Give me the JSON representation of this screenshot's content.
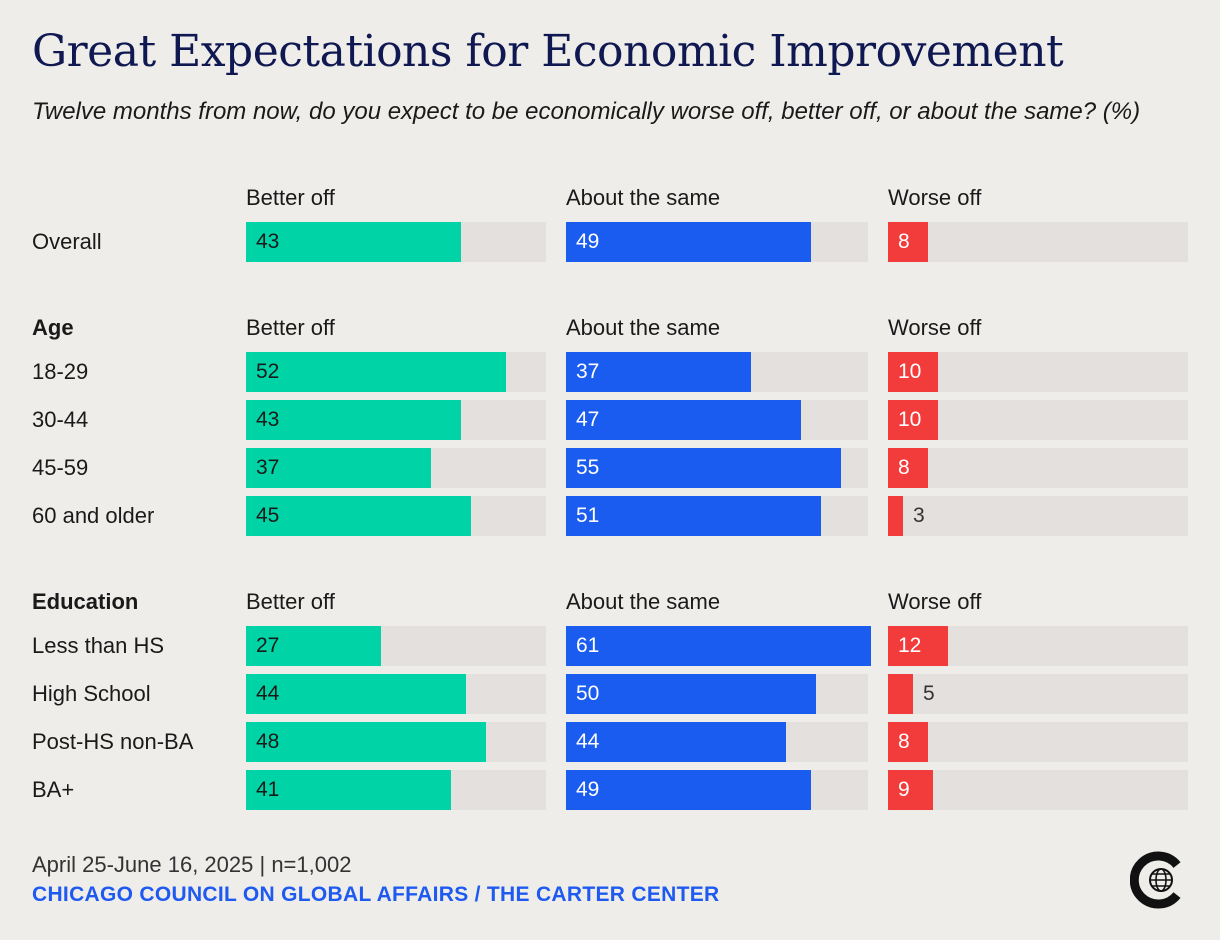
{
  "title": "Great Expectations for Economic Improvement",
  "subtitle": "Twelve months from now, do you expect to be economically worse off, better off, or about the same? (%)",
  "footer": {
    "date": "April 25-June 16, 2025 | n=1,002",
    "source": "CHICAGO COUNCIL ON GLOBAL AFFAIRS / THE CARTER CENTER"
  },
  "colors": {
    "better_off": "#00d4a6",
    "about_same": "#1b5cf0",
    "worse_off": "#f23c3c",
    "track": "#e3e0dd",
    "title": "#0f1850",
    "source": "#1e5af0"
  },
  "logo": {
    "icon": "globe-c-logo-icon"
  },
  "chart_data": {
    "type": "bar",
    "orientation": "horizontal",
    "xlim": [
      0,
      60
    ],
    "grid": false,
    "columns": [
      "Better off",
      "About the same",
      "Worse off"
    ],
    "groups": [
      {
        "label": "",
        "rows": [
          {
            "label": "Overall",
            "values": [
              43,
              49,
              8
            ]
          }
        ]
      },
      {
        "label": "Age",
        "rows": [
          {
            "label": "18-29",
            "values": [
              52,
              37,
              10
            ]
          },
          {
            "label": "30-44",
            "values": [
              43,
              47,
              10
            ]
          },
          {
            "label": "45-59",
            "values": [
              37,
              55,
              8
            ]
          },
          {
            "label": "60 and older",
            "values": [
              45,
              51,
              3
            ]
          }
        ]
      },
      {
        "label": "Education",
        "rows": [
          {
            "label": "Less than HS",
            "values": [
              27,
              61,
              12
            ]
          },
          {
            "label": "High School",
            "values": [
              44,
              50,
              5
            ]
          },
          {
            "label": "Post-HS non-BA",
            "values": [
              48,
              44,
              8
            ]
          },
          {
            "label": "BA+",
            "values": [
              41,
              49,
              9
            ]
          }
        ]
      }
    ]
  }
}
